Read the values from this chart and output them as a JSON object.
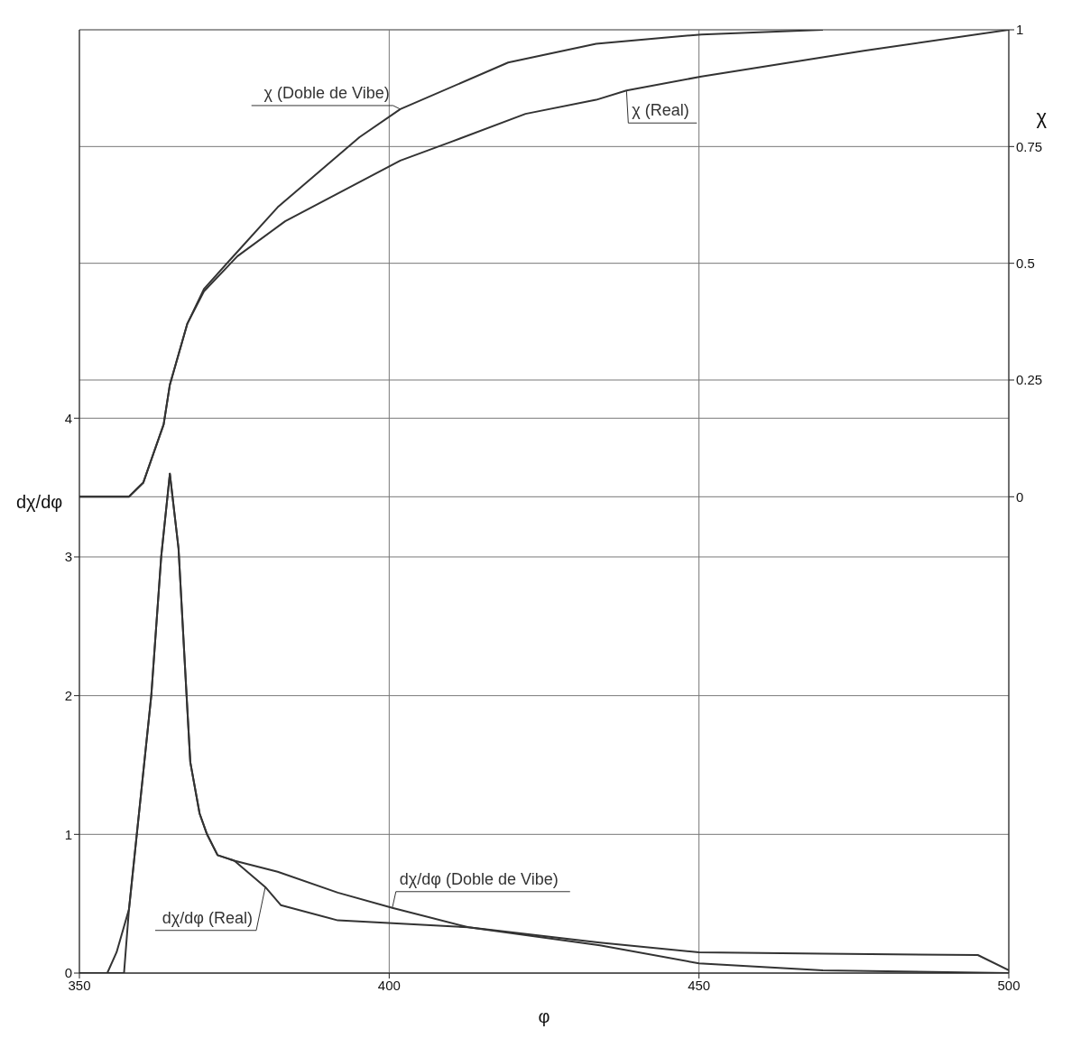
{
  "chart_data": {
    "type": "line",
    "xlabel": "φ",
    "ylabel": "dχ/dφ",
    "y2label": "χ",
    "xlim": [
      350,
      500
    ],
    "xticks": [
      350,
      400,
      450,
      500
    ],
    "ylim": [
      0,
      6.8
    ],
    "yticks": [
      0,
      1,
      2,
      3,
      4
    ],
    "y2lim": [
      -1.02,
      1
    ],
    "y2ticks": [
      0,
      0.25,
      0.5,
      0.75,
      1
    ],
    "grid": true,
    "legend": false,
    "marker": "none",
    "line_style": "solid",
    "series": [
      {
        "name": "χ (Real)",
        "color": "#333333",
        "axis": "y2",
        "x": [
          350,
          357,
          358,
          360.3,
          363.6,
          364.6,
          367.4,
          370.1,
          375.5,
          383.2,
          401.8,
          410,
          422,
          433.4,
          438.3,
          450.4,
          476.6,
          500
        ],
        "values": [
          0,
          0,
          0,
          0.03,
          0.155,
          0.24,
          0.37,
          0.44,
          0.515,
          0.59,
          0.72,
          0.76,
          0.82,
          0.85,
          0.87,
          0.9,
          0.955,
          1
        ]
      },
      {
        "name": "χ (Doble de Vibe)",
        "color": "#333333",
        "axis": "y2",
        "x": [
          350,
          357,
          358,
          360.3,
          363.6,
          364.6,
          367.4,
          370.1,
          374.5,
          382,
          395.2,
          401.8,
          419.2,
          433.4,
          450.4,
          470
        ],
        "values": [
          0,
          0,
          0,
          0.03,
          0.155,
          0.24,
          0.37,
          0.445,
          0.51,
          0.62,
          0.77,
          0.83,
          0.93,
          0.97,
          0.99,
          1
        ]
      },
      {
        "name": "dχ/dφ (Real)",
        "color": "#333333",
        "axis": "y",
        "x": [
          350,
          357.2,
          358,
          361.6,
          363.2,
          364.6,
          366,
          367.3,
          367.9,
          369.4,
          370.6,
          372.3,
          375,
          380,
          382.5,
          391.7,
          412.8,
          434,
          450,
          470,
          495,
          500
        ],
        "values": [
          0,
          0,
          0.46,
          2.0,
          3.0,
          3.6,
          3.06,
          2.0,
          1.52,
          1.15,
          1.0,
          0.85,
          0.81,
          0.62,
          0.49,
          0.38,
          0.33,
          0.22,
          0.15,
          0.14,
          0.13,
          0.02
        ]
      },
      {
        "name": "dχ/dφ (Doble de Vibe)",
        "color": "#333333",
        "axis": "y",
        "x": [
          350,
          354.5,
          356,
          358,
          361.6,
          363.2,
          364.6,
          366,
          367.3,
          367.9,
          369.4,
          370.6,
          372.3,
          375,
          382,
          391.7,
          400.5,
          412.8,
          434,
          450,
          470,
          500
        ],
        "values": [
          0,
          0,
          0.15,
          0.46,
          2.0,
          3.0,
          3.6,
          3.06,
          2.0,
          1.52,
          1.15,
          1.0,
          0.85,
          0.81,
          0.73,
          0.58,
          0.47,
          0.33,
          0.2,
          0.07,
          0.02,
          0
        ]
      }
    ]
  }
}
